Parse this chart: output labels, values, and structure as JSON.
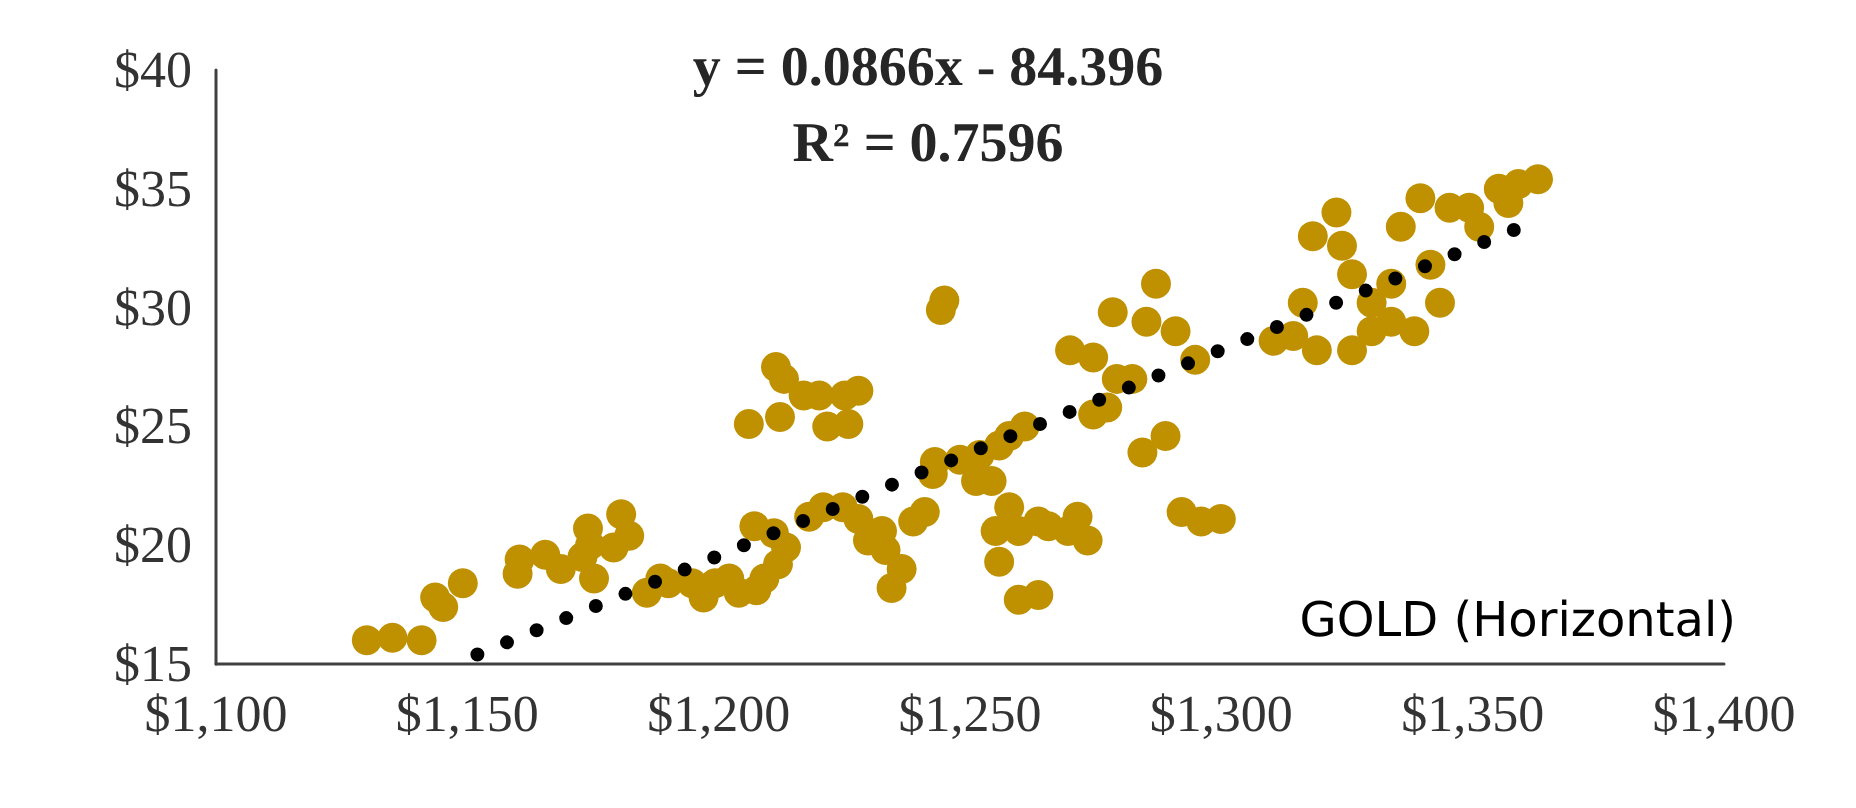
{
  "chart_data": {
    "type": "scatter",
    "annotations": [
      "y = 0.0866x - 84.396",
      "R² = 0.7596",
      "GOLD (Horizontal)"
    ],
    "series": [
      {
        "marker": "circle",
        "color": "#bf9000",
        "x": [
          1130.0,
          1135.1,
          1140.9,
          1143.6,
          1145.2,
          1149.1,
          1160.0,
          1160.4,
          1165.5,
          1168.6,
          1172.9,
          1174.0,
          1174.4,
          1175.2,
          1179.1,
          1180.6,
          1182.2,
          1185.7,
          1188.4,
          1190.0,
          1194.7,
          1197.0,
          1199.3,
          1202.1,
          1204.0,
          1207.5,
          1209.1,
          1211.8,
          1213.4,
          1211.0,
          1207.1,
          1211.4,
          1213.0,
          1216.9,
          1220.0,
          1225.1,
          1227.8,
          1221.6,
          1225.8,
          1206.0,
          1212.2,
          1218.0,
          1220.8,
          1224.7,
          1227.8,
          1232.5,
          1233.2,
          1229.7,
          1234.4,
          1236.4,
          1238.7,
          1241.0,
          1242.6,
          1243.0,
          1244.2,
          1244.9,
          1248.0,
          1251.9,
          1251.2,
          1254.3,
          1255.8,
          1257.8,
          1260.9,
          1257.8,
          1259.7,
          1263.6,
          1265.6,
          1269.5,
          1273.4,
          1271.4,
          1255.1,
          1255.8,
          1259.7,
          1263.6,
          1269.9,
          1274.5,
          1278.4,
          1279.2,
          1285.1,
          1287.0,
          1290.9,
          1294.8,
          1274.5,
          1277.3,
          1282.3,
          1284.3,
          1288.9,
          1292.1,
          1296.0,
          1299.9,
          1310.4,
          1316.2,
          1318.2,
          1322.9,
          1324.0,
          1326.0,
          1329.9,
          1333.8,
          1335.7,
          1339.6,
          1341.6,
          1345.4,
          1349.3,
          1351.3,
          1355.2,
          1357.1,
          1359.1,
          1363.0,
          1319.0,
          1326.0,
          1329.9,
          1333.8,
          1338.4,
          1343.5,
          1314.3
        ],
        "values": [
          16.0,
          16.1,
          16.0,
          17.8,
          17.4,
          18.4,
          18.8,
          19.4,
          19.6,
          19.0,
          19.5,
          20.7,
          20.0,
          18.6,
          19.9,
          21.3,
          20.4,
          18.0,
          18.6,
          18.4,
          18.4,
          17.8,
          18.4,
          18.6,
          18.0,
          18.1,
          18.6,
          19.2,
          19.9,
          20.5,
          20.8,
          27.5,
          27.0,
          26.3,
          26.3,
          26.3,
          26.5,
          25.0,
          25.1,
          25.1,
          25.4,
          21.2,
          21.6,
          21.6,
          21.1,
          20.6,
          19.8,
          20.2,
          18.2,
          19.0,
          21.0,
          21.4,
          23.0,
          23.5,
          29.9,
          30.3,
          23.6,
          23.8,
          22.7,
          22.7,
          24.2,
          24.6,
          25.0,
          21.6,
          20.6,
          21.0,
          20.8,
          20.6,
          20.2,
          21.2,
          20.6,
          19.3,
          17.7,
          17.9,
          28.2,
          27.9,
          29.8,
          27.0,
          29.4,
          31.0,
          29.0,
          27.8,
          25.5,
          25.8,
          27.0,
          23.9,
          24.6,
          21.4,
          21.0,
          21.1,
          28.6,
          30.2,
          33.0,
          34.0,
          32.6,
          31.4,
          30.2,
          31.0,
          33.4,
          34.6,
          31.8,
          34.2,
          34.2,
          33.4,
          35.0,
          34.4,
          35.2,
          35.4,
          28.2,
          28.2,
          29.0,
          29.4,
          29.0,
          30.2,
          28.8
        ]
      },
      {
        "type": "line",
        "marker": "none",
        "line_style": "dotted",
        "color": "#000000",
        "x": [
          1152,
          1362
        ],
        "values": [
          15.4,
          33.6
        ]
      }
    ],
    "grid": false,
    "xlim": [
      1100,
      1400
    ],
    "xticks": [
      {
        "value": 1100,
        "label": "$1,100"
      },
      {
        "value": 1150,
        "label": "$1,150"
      },
      {
        "value": 1200,
        "label": "$1,200"
      },
      {
        "value": 1250,
        "label": "$1,250"
      },
      {
        "value": 1300,
        "label": "$1,300"
      },
      {
        "value": 1350,
        "label": "$1,350"
      },
      {
        "value": 1400,
        "label": "$1,400"
      }
    ],
    "ylim": [
      15,
      40
    ],
    "yticks": [
      {
        "value": 15,
        "label": "$15"
      },
      {
        "value": 20,
        "label": "$20"
      },
      {
        "value": 25,
        "label": "$25"
      },
      {
        "value": 30,
        "label": "$30"
      },
      {
        "value": 35,
        "label": "$35"
      },
      {
        "value": 40,
        "label": "$40"
      }
    ]
  }
}
